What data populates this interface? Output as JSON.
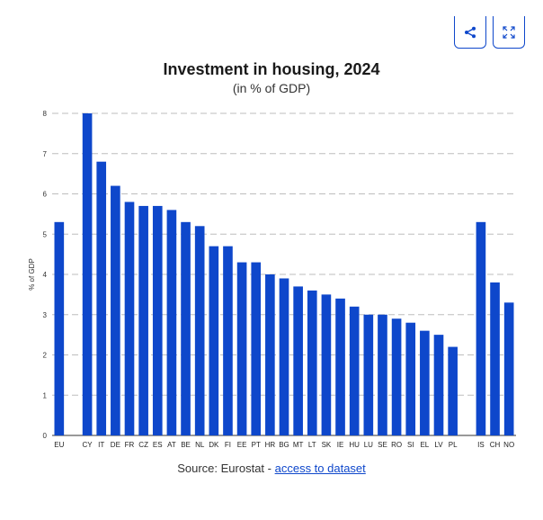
{
  "toolbar": {
    "share_icon": "share-icon",
    "fullscreen_icon": "fullscreen-icon",
    "accent_color": "#0e47cb"
  },
  "chart_data": {
    "type": "bar",
    "title": "Investment in housing, 2024",
    "subtitle": "(in % of GDP)",
    "xlabel": "",
    "ylabel": "% of GDP",
    "ylim": [
      0,
      8
    ],
    "yticks": [
      "0",
      "1",
      "2",
      "3",
      "4",
      "5",
      "6",
      "7",
      "8"
    ],
    "grid": true,
    "bar_color": "#0e47cb",
    "categories": [
      "EU",
      "CY",
      "IT",
      "DE",
      "FR",
      "CZ",
      "ES",
      "AT",
      "BE",
      "NL",
      "DK",
      "FI",
      "EE",
      "PT",
      "HR",
      "BG",
      "MT",
      "LT",
      "SK",
      "IE",
      "HU",
      "LU",
      "SE",
      "RO",
      "SI",
      "EL",
      "LV",
      "PL",
      "IS",
      "CH",
      "NO"
    ],
    "values": [
      5.3,
      8.0,
      6.8,
      6.2,
      5.8,
      5.7,
      5.7,
      5.6,
      5.3,
      5.2,
      4.7,
      4.7,
      4.3,
      4.3,
      4.0,
      3.9,
      3.7,
      3.6,
      3.5,
      3.4,
      3.2,
      3.0,
      3.0,
      2.9,
      2.8,
      2.6,
      2.5,
      2.2,
      5.3,
      3.8,
      3.3
    ],
    "gap_after": [
      0,
      27
    ]
  },
  "footer": {
    "source_prefix": "Source: Eurostat - ",
    "link_text": "access to dataset"
  }
}
